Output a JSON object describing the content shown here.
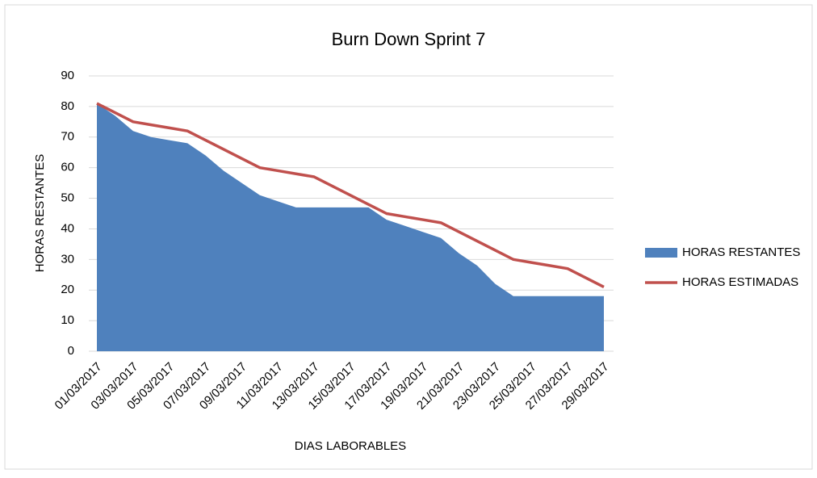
{
  "chart_data": {
    "type": "area_line",
    "title": "Burn Down Sprint 7",
    "x_label": "DIAS LABORABLES",
    "y_label": "HORAS RESTANTES",
    "categories": [
      "01/03/2017",
      null,
      "03/03/2017",
      null,
      "05/03/2017",
      null,
      "07/03/2017",
      null,
      "09/03/2017",
      null,
      "11/03/2017",
      null,
      "13/03/2017",
      null,
      "15/03/2017",
      null,
      "17/03/2017",
      null,
      "19/03/2017",
      null,
      "21/03/2017",
      null,
      "23/03/2017",
      null,
      "25/03/2017",
      null,
      "27/03/2017",
      null,
      "29/03/2017"
    ],
    "series": [
      {
        "name": "HORAS RESTANTES",
        "color": "#4f81bd",
        "kind": "area",
        "values": [
          81,
          77,
          72,
          70,
          69,
          68,
          64,
          59,
          55,
          51,
          49,
          47,
          47,
          47,
          47,
          47,
          43,
          41,
          39,
          37,
          32,
          28,
          22,
          18,
          18,
          18,
          18,
          18,
          18
        ]
      },
      {
        "name": "HORAS ESTIMADAS",
        "color": "#c0504d",
        "kind": "line",
        "values": [
          81,
          78,
          75,
          74,
          73,
          72,
          69,
          66,
          63,
          60,
          59,
          58,
          57,
          54,
          51,
          48,
          45,
          44,
          43,
          42,
          39,
          36,
          33,
          30,
          29,
          28,
          27,
          24,
          21
        ]
      }
    ],
    "ylim": [
      0,
      90
    ],
    "yticks": [
      0,
      10,
      20,
      30,
      40,
      50,
      60,
      70,
      80,
      90
    ],
    "grid": true,
    "legend": "right"
  }
}
